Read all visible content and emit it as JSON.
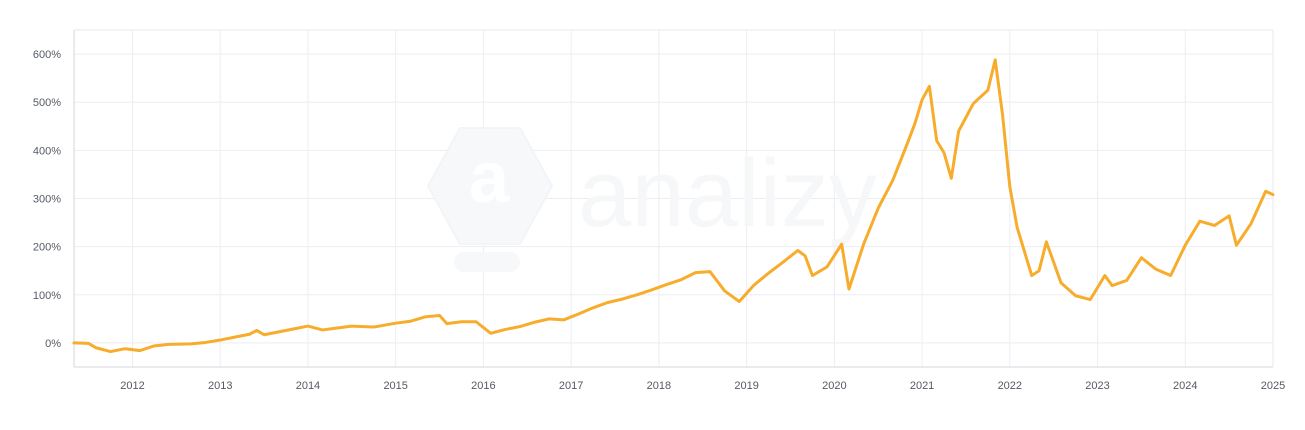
{
  "chart_data": {
    "type": "line",
    "title": "",
    "xlabel": "",
    "ylabel": "",
    "x_ticks": [
      "2012",
      "2013",
      "2014",
      "2015",
      "2016",
      "2017",
      "2018",
      "2019",
      "2020",
      "2021",
      "2022",
      "2023",
      "2024",
      "2025"
    ],
    "y_ticks": [
      "0%",
      "100%",
      "200%",
      "300%",
      "400%",
      "500%",
      "600%"
    ],
    "ylim": [
      -50,
      650
    ],
    "xlim": [
      "2011-05",
      "2025-01"
    ],
    "grid": true,
    "legend": "none",
    "watermark": "analizy",
    "series": [
      {
        "color": "#f7ac2c",
        "unit": "%",
        "points": [
          [
            "2011-05",
            0
          ],
          [
            "2011-07",
            -1
          ],
          [
            "2011-08",
            -10
          ],
          [
            "2011-10",
            -18
          ],
          [
            "2011-12",
            -12
          ],
          [
            "2012-02",
            -16
          ],
          [
            "2012-04",
            -6
          ],
          [
            "2012-06",
            -3
          ],
          [
            "2012-09",
            -2
          ],
          [
            "2012-11",
            1
          ],
          [
            "2013-01",
            6
          ],
          [
            "2013-03",
            12
          ],
          [
            "2013-05",
            18
          ],
          [
            "2013-06",
            26
          ],
          [
            "2013-07",
            17
          ],
          [
            "2013-09",
            23
          ],
          [
            "2013-11",
            29
          ],
          [
            "2014-01",
            35
          ],
          [
            "2014-03",
            27
          ],
          [
            "2014-05",
            31
          ],
          [
            "2014-07",
            35
          ],
          [
            "2014-10",
            33
          ],
          [
            "2015-01",
            41
          ],
          [
            "2015-03",
            45
          ],
          [
            "2015-05",
            54
          ],
          [
            "2015-07",
            57
          ],
          [
            "2015-08",
            40
          ],
          [
            "2015-10",
            44
          ],
          [
            "2015-12",
            44
          ],
          [
            "2016-02",
            20
          ],
          [
            "2016-04",
            28
          ],
          [
            "2016-06",
            34
          ],
          [
            "2016-08",
            43
          ],
          [
            "2016-10",
            50
          ],
          [
            "2016-12",
            48
          ],
          [
            "2017-02",
            60
          ],
          [
            "2017-04",
            73
          ],
          [
            "2017-06",
            84
          ],
          [
            "2017-08",
            91
          ],
          [
            "2017-10",
            100
          ],
          [
            "2017-12",
            110
          ],
          [
            "2018-02",
            121
          ],
          [
            "2018-04",
            131
          ],
          [
            "2018-06",
            146
          ],
          [
            "2018-08",
            148
          ],
          [
            "2018-10",
            108
          ],
          [
            "2018-12",
            86
          ],
          [
            "2019-02",
            120
          ],
          [
            "2019-04",
            145
          ],
          [
            "2019-06",
            168
          ],
          [
            "2019-08",
            192
          ],
          [
            "2019-09",
            181
          ],
          [
            "2019-10",
            140
          ],
          [
            "2019-12",
            158
          ],
          [
            "2020-02",
            205
          ],
          [
            "2020-03",
            112
          ],
          [
            "2020-05",
            205
          ],
          [
            "2020-07",
            280
          ],
          [
            "2020-09",
            338
          ],
          [
            "2020-11",
            415
          ],
          [
            "2020-12",
            455
          ],
          [
            "2021-01",
            505
          ],
          [
            "2021-02",
            533
          ],
          [
            "2021-03",
            420
          ],
          [
            "2021-04",
            395
          ],
          [
            "2021-05",
            342
          ],
          [
            "2021-06",
            440
          ],
          [
            "2021-08",
            497
          ],
          [
            "2021-10",
            525
          ],
          [
            "2021-11",
            588
          ],
          [
            "2021-12",
            475
          ],
          [
            "2022-01",
            325
          ],
          [
            "2022-02",
            240
          ],
          [
            "2022-03",
            190
          ],
          [
            "2022-04",
            140
          ],
          [
            "2022-05",
            150
          ],
          [
            "2022-06",
            210
          ],
          [
            "2022-08",
            125
          ],
          [
            "2022-10",
            98
          ],
          [
            "2022-12",
            90
          ],
          [
            "2023-02",
            140
          ],
          [
            "2023-03",
            119
          ],
          [
            "2023-05",
            130
          ],
          [
            "2023-07",
            177
          ],
          [
            "2023-09",
            153
          ],
          [
            "2023-11",
            140
          ],
          [
            "2024-01",
            203
          ],
          [
            "2024-03",
            253
          ],
          [
            "2024-05",
            244
          ],
          [
            "2024-07",
            264
          ],
          [
            "2024-08",
            203
          ],
          [
            "2024-10",
            248
          ],
          [
            "2024-12",
            315
          ],
          [
            "2025-01",
            308
          ]
        ]
      }
    ]
  }
}
